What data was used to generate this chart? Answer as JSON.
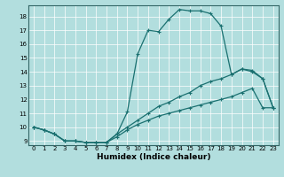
{
  "xlabel": "Humidex (Indice chaleur)",
  "bg_color": "#b2dede",
  "line_color": "#1a7070",
  "grid_color": "#ffffff",
  "xlim": [
    -0.5,
    23.5
  ],
  "ylim": [
    8.7,
    18.8
  ],
  "yticks": [
    9,
    10,
    11,
    12,
    13,
    14,
    15,
    16,
    17,
    18
  ],
  "xticks": [
    0,
    1,
    2,
    3,
    4,
    5,
    6,
    7,
    8,
    9,
    10,
    11,
    12,
    13,
    14,
    15,
    16,
    17,
    18,
    19,
    20,
    21,
    22,
    23
  ],
  "line3_x": [
    0,
    1,
    2,
    3,
    4,
    5,
    6,
    7,
    8,
    9,
    10,
    11,
    12,
    13,
    14,
    15,
    16,
    17,
    18,
    19,
    20,
    21,
    22,
    23
  ],
  "line3_y": [
    10.0,
    9.8,
    9.5,
    9.0,
    9.0,
    8.9,
    8.9,
    8.9,
    9.5,
    11.1,
    15.3,
    17.0,
    16.9,
    17.8,
    18.5,
    18.4,
    18.4,
    18.2,
    17.3,
    13.8,
    14.2,
    14.0,
    13.5,
    11.4
  ],
  "line1_x": [
    0,
    1,
    2,
    3,
    4,
    5,
    6,
    7,
    8,
    9,
    10,
    11,
    12,
    13,
    14,
    15,
    16,
    17,
    18,
    19,
    20,
    21,
    22,
    23
  ],
  "line1_y": [
    10.0,
    9.8,
    9.5,
    9.0,
    9.0,
    8.9,
    8.9,
    8.9,
    9.5,
    10.0,
    10.5,
    11.0,
    11.5,
    11.8,
    12.2,
    12.5,
    13.0,
    13.3,
    13.5,
    13.8,
    14.2,
    14.1,
    13.5,
    11.4
  ],
  "line2_x": [
    0,
    1,
    2,
    3,
    4,
    5,
    6,
    7,
    8,
    9,
    10,
    11,
    12,
    13,
    14,
    15,
    16,
    17,
    18,
    19,
    20,
    21,
    22,
    23
  ],
  "line2_y": [
    10.0,
    9.8,
    9.5,
    9.0,
    9.0,
    8.9,
    8.9,
    8.9,
    9.3,
    9.8,
    10.2,
    10.5,
    10.8,
    11.0,
    11.2,
    11.4,
    11.6,
    11.8,
    12.0,
    12.2,
    12.5,
    12.8,
    11.4,
    11.4
  ],
  "marker": "+",
  "markersize": 3,
  "linewidth": 0.9,
  "tick_fontsize": 5,
  "xlabel_fontsize": 6.5
}
